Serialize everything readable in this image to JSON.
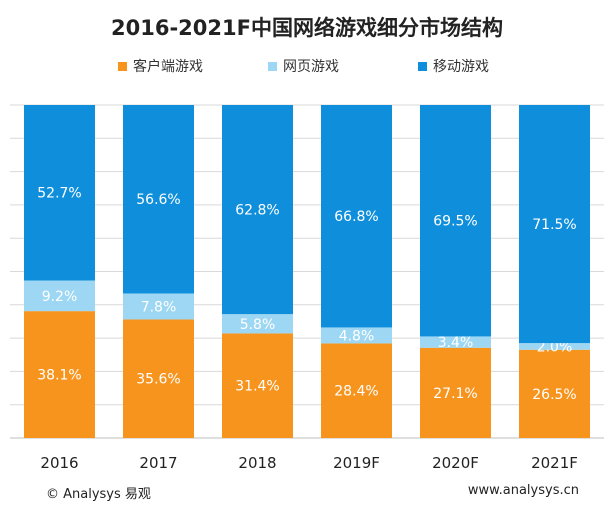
{
  "chart_data": {
    "type": "bar",
    "stacked": true,
    "title": "2016-2021F中国网络游戏细分市场结构",
    "categories": [
      "2016",
      "2017",
      "2018",
      "2019F",
      "2020F",
      "2021F"
    ],
    "series": [
      {
        "name": "客户端游戏",
        "color": "#F7941D",
        "values": [
          38.1,
          35.6,
          31.4,
          28.4,
          27.1,
          26.5
        ],
        "labels": [
          "38.1%",
          "35.6%",
          "31.4%",
          "28.4%",
          "27.1%",
          "26.5%"
        ]
      },
      {
        "name": "网页游戏",
        "color": "#9DD7F3",
        "values": [
          9.2,
          7.8,
          5.8,
          4.8,
          3.4,
          2.0
        ],
        "labels": [
          "9.2%",
          "7.8%",
          "5.8%",
          "4.8%",
          "3.4%",
          "2.0%"
        ]
      },
      {
        "name": "移动游戏",
        "color": "#0F8FDB",
        "values": [
          52.7,
          56.6,
          62.8,
          66.8,
          69.5,
          71.5
        ],
        "labels": [
          "52.7%",
          "56.6%",
          "62.8%",
          "66.8%",
          "69.5%",
          "71.5%"
        ]
      }
    ],
    "ylim": [
      0,
      100
    ],
    "grid": true,
    "legend": "top",
    "xlabel": "",
    "ylabel": ""
  },
  "footer": {
    "copyright": "© Analysys 易观",
    "website": "www.analysys.cn"
  },
  "watermark": "Analysys易观"
}
